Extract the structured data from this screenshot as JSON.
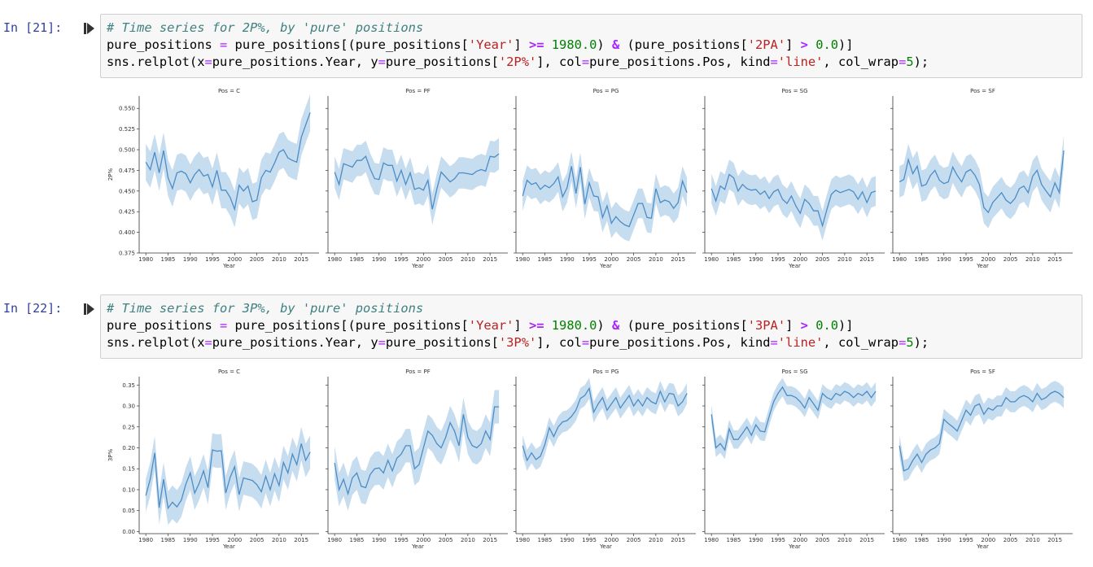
{
  "cells": [
    {
      "prompt": "In [21]:",
      "code": [
        [
          {
            "t": "# Time series for 2P%, by 'pure' positions",
            "c": "comment"
          }
        ],
        [
          {
            "t": "pure_positions "
          },
          {
            "t": "=",
            "c": "eq"
          },
          {
            "t": " pure_positions[(pure_positions["
          },
          {
            "t": "'Year'",
            "c": "str"
          },
          {
            "t": "] "
          },
          {
            "t": ">=",
            "c": "op"
          },
          {
            "t": " "
          },
          {
            "t": "1980.0",
            "c": "num"
          },
          {
            "t": ") "
          },
          {
            "t": "&",
            "c": "op"
          },
          {
            "t": " (pure_positions["
          },
          {
            "t": "'2PA'",
            "c": "str"
          },
          {
            "t": "] "
          },
          {
            "t": ">",
            "c": "op"
          },
          {
            "t": " "
          },
          {
            "t": "0.0",
            "c": "num"
          },
          {
            "t": ")]"
          }
        ],
        [
          {
            "t": "sns.relplot(x"
          },
          {
            "t": "=",
            "c": "eq"
          },
          {
            "t": "pure_positions.Year, y"
          },
          {
            "t": "=",
            "c": "eq"
          },
          {
            "t": "pure_positions["
          },
          {
            "t": "'2P%'",
            "c": "str"
          },
          {
            "t": "], col"
          },
          {
            "t": "=",
            "c": "eq"
          },
          {
            "t": "pure_positions.Pos, kind"
          },
          {
            "t": "=",
            "c": "eq"
          },
          {
            "t": "'line'",
            "c": "str"
          },
          {
            "t": ", col_wrap"
          },
          {
            "t": "=",
            "c": "eq"
          },
          {
            "t": "5",
            "c": "num"
          },
          {
            "t": ");"
          }
        ]
      ]
    },
    {
      "prompt": "In [22]:",
      "code": [
        [
          {
            "t": "# Time series for 3P%, by 'pure' positions",
            "c": "comment"
          }
        ],
        [
          {
            "t": "pure_positions "
          },
          {
            "t": "=",
            "c": "eq"
          },
          {
            "t": " pure_positions[(pure_positions["
          },
          {
            "t": "'Year'",
            "c": "str"
          },
          {
            "t": "] "
          },
          {
            "t": ">=",
            "c": "op"
          },
          {
            "t": " "
          },
          {
            "t": "1980.0",
            "c": "num"
          },
          {
            "t": ") "
          },
          {
            "t": "&",
            "c": "op"
          },
          {
            "t": " (pure_positions["
          },
          {
            "t": "'3PA'",
            "c": "str"
          },
          {
            "t": "] "
          },
          {
            "t": ">",
            "c": "op"
          },
          {
            "t": " "
          },
          {
            "t": "0.0",
            "c": "num"
          },
          {
            "t": ")]"
          }
        ],
        [
          {
            "t": "sns.relplot(x"
          },
          {
            "t": "=",
            "c": "eq"
          },
          {
            "t": "pure_positions.Year, y"
          },
          {
            "t": "=",
            "c": "eq"
          },
          {
            "t": "pure_positions["
          },
          {
            "t": "'3P%'",
            "c": "str"
          },
          {
            "t": "], col"
          },
          {
            "t": "=",
            "c": "eq"
          },
          {
            "t": "pure_positions.Pos, kind"
          },
          {
            "t": "=",
            "c": "eq"
          },
          {
            "t": "'line'",
            "c": "str"
          },
          {
            "t": ", col_wrap"
          },
          {
            "t": "=",
            "c": "eq"
          },
          {
            "t": "5",
            "c": "num"
          },
          {
            "t": ");"
          }
        ]
      ]
    }
  ],
  "colors": {
    "line": "#4c8dc6",
    "band": "#c6dcef",
    "prompt": "#303f9f"
  },
  "chart_data": [
    {
      "type": "line",
      "ylabel": "2P%",
      "xlabel": "Year",
      "xlim": [
        1978.5,
        2019
      ],
      "ylim": [
        0.375,
        0.565
      ],
      "xticks": [
        1980,
        1985,
        1990,
        1995,
        2000,
        2005,
        2010,
        2015
      ],
      "xtick_labels": [
        "1980",
        "1985",
        "1990",
        "1995",
        "2000",
        "2005",
        "2010",
        "2015"
      ],
      "yticks": [
        0.375,
        0.4,
        0.425,
        0.45,
        0.475,
        0.5,
        0.525,
        0.55
      ],
      "ytick_labels": [
        "0.375",
        "0.400",
        "0.425",
        "0.450",
        "0.475",
        "0.500",
        "0.525",
        "0.550"
      ],
      "x": [
        1980,
        1981,
        1982,
        1983,
        1984,
        1985,
        1986,
        1987,
        1988,
        1989,
        1990,
        1991,
        1992,
        1993,
        1994,
        1995,
        1996,
        1997,
        1998,
        1999,
        2000,
        2001,
        2002,
        2003,
        2004,
        2005,
        2006,
        2007,
        2008,
        2009,
        2010,
        2011,
        2012,
        2013,
        2014,
        2015,
        2016,
        2017
      ],
      "panels": [
        {
          "title": "Pos = C",
          "values": [
            0.485,
            0.476,
            0.497,
            0.472,
            0.499,
            0.466,
            0.453,
            0.472,
            0.474,
            0.471,
            0.46,
            0.47,
            0.476,
            0.468,
            0.47,
            0.455,
            0.475,
            0.451,
            0.451,
            0.442,
            0.428,
            0.457,
            0.45,
            0.456,
            0.437,
            0.439,
            0.466,
            0.475,
            0.473,
            0.484,
            0.497,
            0.5,
            0.49,
            0.487,
            0.485,
            0.515,
            0.53,
            0.545
          ],
          "band": 0.022
        },
        {
          "title": "Pos = PF",
          "values": [
            0.473,
            0.458,
            0.483,
            0.481,
            0.479,
            0.487,
            0.487,
            0.492,
            0.477,
            0.465,
            0.464,
            0.484,
            0.481,
            0.481,
            0.462,
            0.475,
            0.458,
            0.472,
            0.452,
            0.454,
            0.451,
            0.463,
            0.428,
            0.452,
            0.473,
            0.467,
            0.461,
            0.465,
            0.472,
            0.472,
            0.471,
            0.47,
            0.474,
            0.476,
            0.474,
            0.492,
            0.491,
            0.495
          ],
          "band": 0.019
        },
        {
          "title": "Pos = PG",
          "values": [
            0.444,
            0.463,
            0.458,
            0.46,
            0.452,
            0.457,
            0.454,
            0.459,
            0.467,
            0.443,
            0.454,
            0.48,
            0.447,
            0.479,
            0.434,
            0.46,
            0.444,
            0.443,
            0.418,
            0.432,
            0.411,
            0.419,
            0.413,
            0.409,
            0.407,
            0.421,
            0.435,
            0.435,
            0.418,
            0.417,
            0.453,
            0.436,
            0.439,
            0.437,
            0.429,
            0.436,
            0.462,
            0.448
          ],
          "band": 0.018
        },
        {
          "title": "Pos = SG",
          "values": [
            0.453,
            0.438,
            0.456,
            0.452,
            0.47,
            0.466,
            0.45,
            0.458,
            0.453,
            0.451,
            0.452,
            0.446,
            0.45,
            0.441,
            0.449,
            0.452,
            0.44,
            0.435,
            0.444,
            0.432,
            0.423,
            0.44,
            0.435,
            0.426,
            0.426,
            0.408,
            0.428,
            0.446,
            0.451,
            0.448,
            0.45,
            0.452,
            0.449,
            0.44,
            0.449,
            0.436,
            0.448,
            0.45
          ],
          "band": 0.018
        },
        {
          "title": "Pos = SF",
          "values": [
            0.461,
            0.464,
            0.488,
            0.471,
            0.48,
            0.456,
            0.458,
            0.469,
            0.475,
            0.463,
            0.459,
            0.461,
            0.479,
            0.469,
            0.461,
            0.473,
            0.476,
            0.469,
            0.458,
            0.43,
            0.424,
            0.436,
            0.442,
            0.448,
            0.439,
            0.435,
            0.441,
            0.453,
            0.456,
            0.448,
            0.468,
            0.475,
            0.458,
            0.45,
            0.443,
            0.46,
            0.448,
            0.499
          ],
          "band": 0.019
        }
      ]
    },
    {
      "type": "line",
      "ylabel": "3P%",
      "xlabel": "Year",
      "xlim": [
        1978.5,
        2019
      ],
      "ylim": [
        -0.005,
        0.37
      ],
      "xticks": [
        1980,
        1985,
        1990,
        1995,
        2000,
        2005,
        2010,
        2015
      ],
      "xtick_labels": [
        "1980",
        "1985",
        "1990",
        "1995",
        "2000",
        "2005",
        "2010",
        "2015"
      ],
      "yticks": [
        0,
        0.05,
        0.1,
        0.15,
        0.2,
        0.25,
        0.3,
        0.35
      ],
      "ytick_labels": [
        "0.00",
        "0.05",
        "0.10",
        "0.15",
        "0.20",
        "0.25",
        "0.30",
        "0.35"
      ],
      "x": [
        1980,
        1981,
        1982,
        1983,
        1984,
        1985,
        1986,
        1987,
        1988,
        1989,
        1990,
        1991,
        1992,
        1993,
        1994,
        1995,
        1996,
        1997,
        1998,
        1999,
        2000,
        2001,
        2002,
        2003,
        2004,
        2005,
        2006,
        2007,
        2008,
        2009,
        2010,
        2011,
        2012,
        2013,
        2014,
        2015,
        2016,
        2017
      ],
      "panels": [
        {
          "title": "Pos = C",
          "values": [
            0.086,
            0.125,
            0.188,
            0.057,
            0.125,
            0.056,
            0.07,
            0.059,
            0.075,
            0.113,
            0.14,
            0.092,
            0.115,
            0.145,
            0.105,
            0.195,
            0.192,
            0.193,
            0.092,
            0.13,
            0.155,
            0.088,
            0.128,
            0.125,
            0.122,
            0.112,
            0.095,
            0.132,
            0.1,
            0.138,
            0.11,
            0.165,
            0.14,
            0.185,
            0.16,
            0.21,
            0.17,
            0.19
          ],
          "band": 0.04
        },
        {
          "title": "Pos = PF",
          "values": [
            0.164,
            0.1,
            0.125,
            0.09,
            0.128,
            0.14,
            0.108,
            0.105,
            0.136,
            0.15,
            0.152,
            0.14,
            0.17,
            0.145,
            0.175,
            0.185,
            0.205,
            0.205,
            0.15,
            0.16,
            0.2,
            0.24,
            0.23,
            0.21,
            0.2,
            0.225,
            0.26,
            0.24,
            0.205,
            0.28,
            0.225,
            0.205,
            0.2,
            0.21,
            0.24,
            0.22,
            0.298,
            0.298
          ],
          "band": 0.04
        },
        {
          "title": "Pos = PG",
          "values": [
            0.205,
            0.17,
            0.188,
            0.172,
            0.18,
            0.208,
            0.248,
            0.227,
            0.25,
            0.262,
            0.265,
            0.275,
            0.29,
            0.318,
            0.325,
            0.342,
            0.285,
            0.305,
            0.32,
            0.29,
            0.305,
            0.32,
            0.295,
            0.31,
            0.325,
            0.3,
            0.315,
            0.3,
            0.32,
            0.31,
            0.305,
            0.335,
            0.31,
            0.33,
            0.328,
            0.3,
            0.31,
            0.33
          ],
          "band": 0.025
        },
        {
          "title": "Pos = SG",
          "values": [
            0.28,
            0.2,
            0.21,
            0.195,
            0.245,
            0.22,
            0.22,
            0.235,
            0.25,
            0.23,
            0.255,
            0.24,
            0.238,
            0.275,
            0.31,
            0.33,
            0.345,
            0.325,
            0.325,
            0.32,
            0.31,
            0.295,
            0.32,
            0.305,
            0.29,
            0.33,
            0.32,
            0.315,
            0.33,
            0.325,
            0.335,
            0.33,
            0.32,
            0.33,
            0.325,
            0.335,
            0.32,
            0.335
          ],
          "band": 0.022
        },
        {
          "title": "Pos = SF",
          "values": [
            0.205,
            0.145,
            0.15,
            0.17,
            0.185,
            0.165,
            0.185,
            0.195,
            0.2,
            0.21,
            0.268,
            0.258,
            0.25,
            0.24,
            0.265,
            0.29,
            0.278,
            0.3,
            0.305,
            0.28,
            0.295,
            0.29,
            0.3,
            0.3,
            0.32,
            0.31,
            0.31,
            0.32,
            0.325,
            0.32,
            0.31,
            0.33,
            0.315,
            0.32,
            0.33,
            0.335,
            0.33,
            0.32
          ],
          "band": 0.025
        }
      ]
    }
  ]
}
